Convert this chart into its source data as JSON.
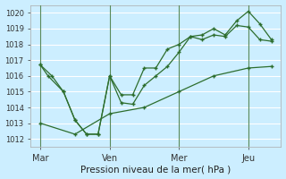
{
  "xlabel": "Pression niveau de la mer( hPa )",
  "bg_color": "#cceeff",
  "grid_color": "#aaddcc",
  "line_color": "#2d6e2d",
  "vline_color": "#5a8a5a",
  "ylim": [
    1011.5,
    1020.5
  ],
  "yticks": [
    1012,
    1013,
    1014,
    1015,
    1016,
    1017,
    1018,
    1019,
    1020
  ],
  "xtick_labels": [
    "Mar",
    "Ven",
    "Mer",
    "Jeu"
  ],
  "xtick_positions": [
    0,
    36,
    72,
    108
  ],
  "xlim": [
    -5,
    125
  ],
  "series1_x": [
    0,
    4,
    12,
    18,
    24,
    30,
    36,
    42,
    48,
    54,
    60,
    66,
    72,
    78,
    84,
    90,
    96,
    102,
    108,
    114,
    120
  ],
  "series1_y": [
    1016.7,
    1016.0,
    1015.0,
    1013.2,
    1012.3,
    1012.3,
    1016.0,
    1014.3,
    1014.2,
    1015.4,
    1016.0,
    1016.6,
    1017.5,
    1018.5,
    1018.3,
    1018.6,
    1018.5,
    1019.2,
    1019.1,
    1018.3,
    1018.2
  ],
  "series2_x": [
    0,
    6,
    12,
    18,
    24,
    30,
    36,
    42,
    48,
    54,
    60,
    66,
    72,
    78,
    84,
    90,
    96,
    102,
    108,
    114,
    120
  ],
  "series2_y": [
    1016.7,
    1016.0,
    1015.0,
    1013.2,
    1012.3,
    1012.3,
    1016.0,
    1014.8,
    1014.8,
    1016.5,
    1016.5,
    1017.7,
    1018.0,
    1018.5,
    1018.6,
    1019.0,
    1018.6,
    1019.5,
    1020.1,
    1019.3,
    1018.3
  ],
  "series3_x": [
    0,
    18,
    36,
    54,
    72,
    90,
    108,
    120
  ],
  "series3_y": [
    1013.0,
    1012.3,
    1013.6,
    1014.0,
    1015.0,
    1016.0,
    1016.5,
    1016.6
  ],
  "vlines": [
    0,
    36,
    72,
    108
  ]
}
